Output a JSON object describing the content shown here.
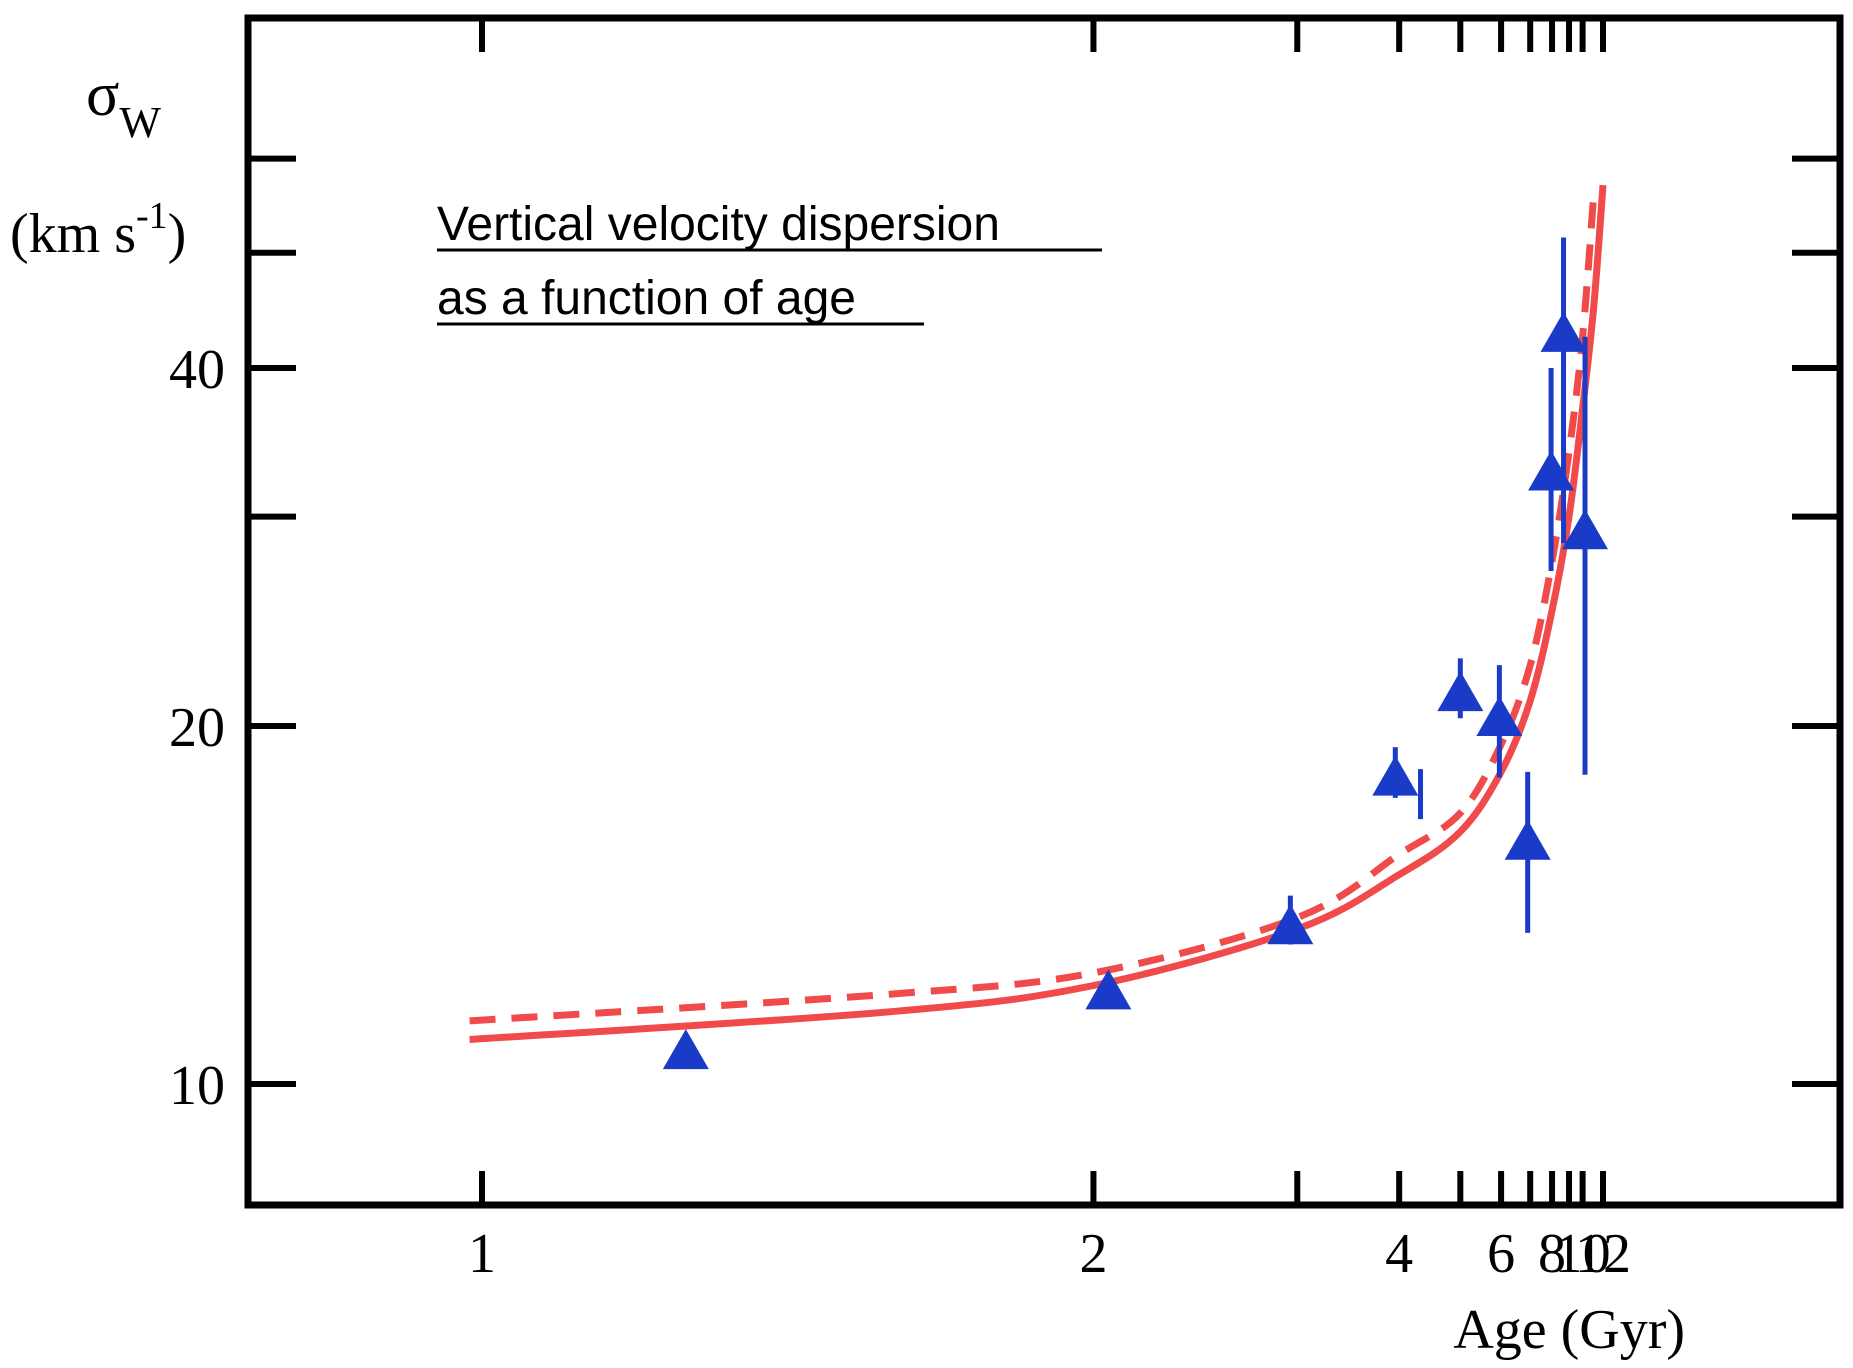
{
  "chart_data": {
    "type": "scatter",
    "annotation": {
      "line1": "Vertical velocity dispersion",
      "line2": "as a function of age"
    },
    "ylabel": {
      "symbol": "σ",
      "subscript": "W",
      "unit_open": "(km s",
      "unit_sup": "-1",
      "unit_close": ")"
    },
    "xlabel": "Age (Gyr)",
    "x_scale": "reciprocal",
    "y_scale": "log",
    "xlim": [
      0.93,
      20
    ],
    "ylim": [
      8.3,
      60
    ],
    "x_ticks": [
      1,
      2,
      4,
      6,
      8,
      10,
      12
    ],
    "x_tick_labels": [
      "1",
      "2",
      "4",
      "6",
      "8",
      "10",
      "12"
    ],
    "x_minor_ticks": [
      3,
      5,
      7,
      9
    ],
    "y_ticks": [
      10,
      20,
      40
    ],
    "y_tick_labels": [
      "10",
      "20",
      "40"
    ],
    "y_minor_ticks": [
      30,
      50,
      60
    ],
    "colors": {
      "points": "#1a3bc8",
      "fit": "#f04a4a",
      "frame": "#000000"
    },
    "series": [
      {
        "kind": "points",
        "marker": "triangle",
        "points": [
          {
            "x": 1.2,
            "y": 10.6,
            "ylo": null,
            "yhi": null
          },
          {
            "x": 2.05,
            "y": 11.9,
            "ylo": null,
            "yhi": null
          },
          {
            "x": 2.95,
            "y": 13.5,
            "ylo": 13.1,
            "yhi": 14.4
          },
          {
            "x": 3.95,
            "y": 18.0,
            "ylo": 17.4,
            "yhi": 19.2
          },
          {
            "x": 5.0,
            "y": 21.2,
            "ylo": 20.3,
            "yhi": 22.8
          },
          {
            "x": 5.95,
            "y": 20.2,
            "ylo": 18.1,
            "yhi": 22.5
          },
          {
            "x": 6.9,
            "y": 15.9,
            "ylo": 13.4,
            "yhi": 18.3
          },
          {
            "x": 7.95,
            "y": 32.5,
            "ylo": 27.0,
            "yhi": 40.0
          },
          {
            "x": 8.65,
            "y": 42.5,
            "ylo": 28.5,
            "yhi": 51.5
          },
          {
            "x": 10.2,
            "y": 29.0,
            "ylo": 18.2,
            "yhi": 42.5
          }
        ]
      },
      {
        "kind": "error-bar",
        "x": 4.3,
        "ylo": 16.7,
        "yhi": 18.4
      },
      {
        "kind": "fit",
        "style": "solid",
        "x": [
          0.99,
          1.5,
          2.0,
          3.0,
          4.0,
          5.0,
          6.0,
          7.0,
          8.0,
          9.0,
          10.0,
          11.0,
          12.0
        ],
        "y": [
          10.9,
          11.5,
          12.1,
          13.5,
          15.0,
          16.3,
          18.3,
          21.0,
          25.0,
          30.0,
          37.0,
          45.0,
          57.0
        ]
      },
      {
        "kind": "fit",
        "style": "dashed",
        "x": [
          0.99,
          1.5,
          2.0,
          3.0,
          4.0,
          5.0,
          6.0,
          7.0,
          8.0,
          9.0,
          10.0,
          11.0
        ],
        "y": [
          11.3,
          11.9,
          12.4,
          13.8,
          15.6,
          16.9,
          19.3,
          22.5,
          27.5,
          34.0,
          42.5,
          56.0
        ]
      }
    ]
  }
}
